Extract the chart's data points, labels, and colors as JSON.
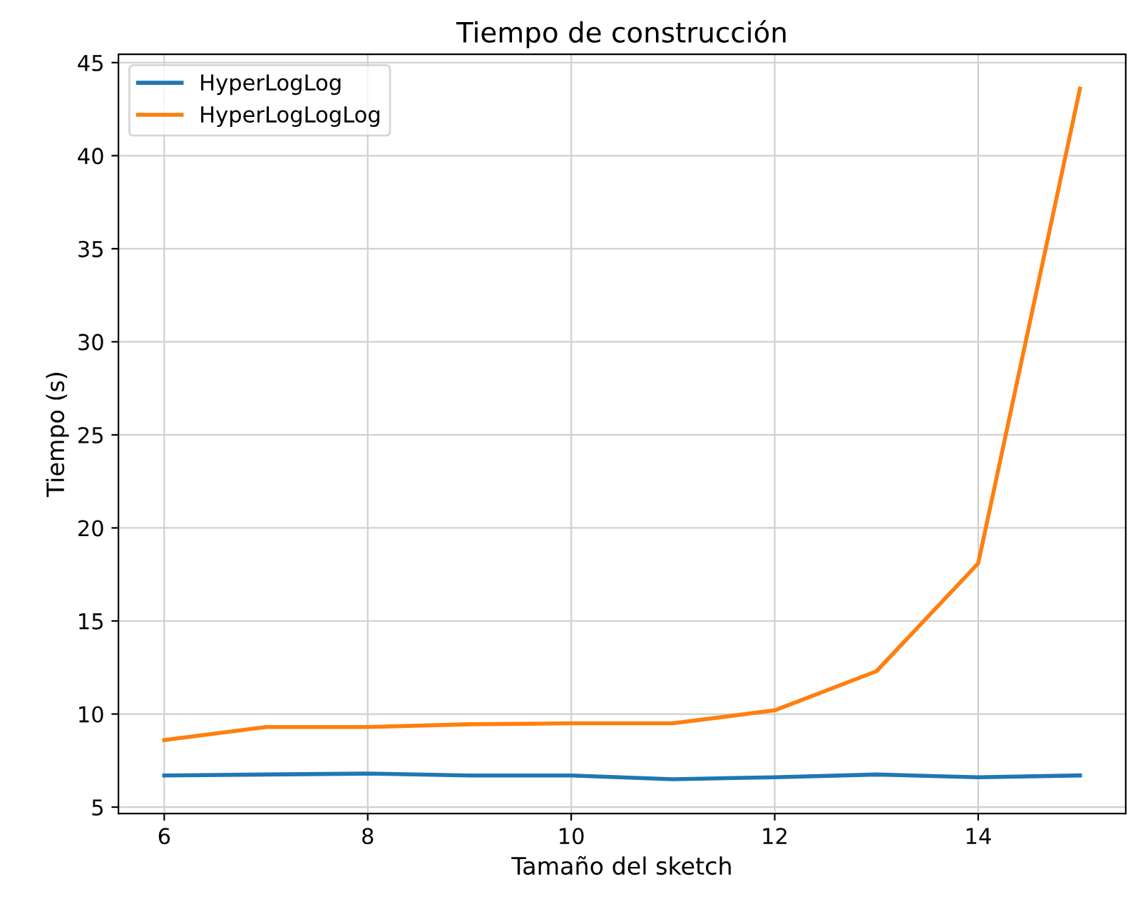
{
  "chart_data": {
    "type": "line",
    "title": "Tiempo de construcción",
    "xlabel": "Tamaño del sketch",
    "ylabel": "Tiempo (s)",
    "x": [
      6,
      7,
      8,
      9,
      10,
      11,
      12,
      13,
      14,
      15
    ],
    "series": [
      {
        "name": "HyperLogLog",
        "color": "#1f77b4",
        "values": [
          6.7,
          6.75,
          6.8,
          6.7,
          6.7,
          6.5,
          6.6,
          6.75,
          6.6,
          6.7
        ]
      },
      {
        "name": "HyperLogLogLog",
        "color": "#ff7f0e",
        "values": [
          8.6,
          9.3,
          9.3,
          9.45,
          9.5,
          9.5,
          10.2,
          12.3,
          18.1,
          43.6
        ]
      }
    ],
    "xlim": [
      5.55,
      15.45
    ],
    "ylim": [
      4.65,
      45.45
    ],
    "xticks": [
      6,
      8,
      10,
      12,
      14
    ],
    "yticks": [
      5,
      10,
      15,
      20,
      25,
      30,
      35,
      40,
      45
    ],
    "grid": true,
    "legend": "top left",
    "marker": "none",
    "line_style": "solid"
  }
}
